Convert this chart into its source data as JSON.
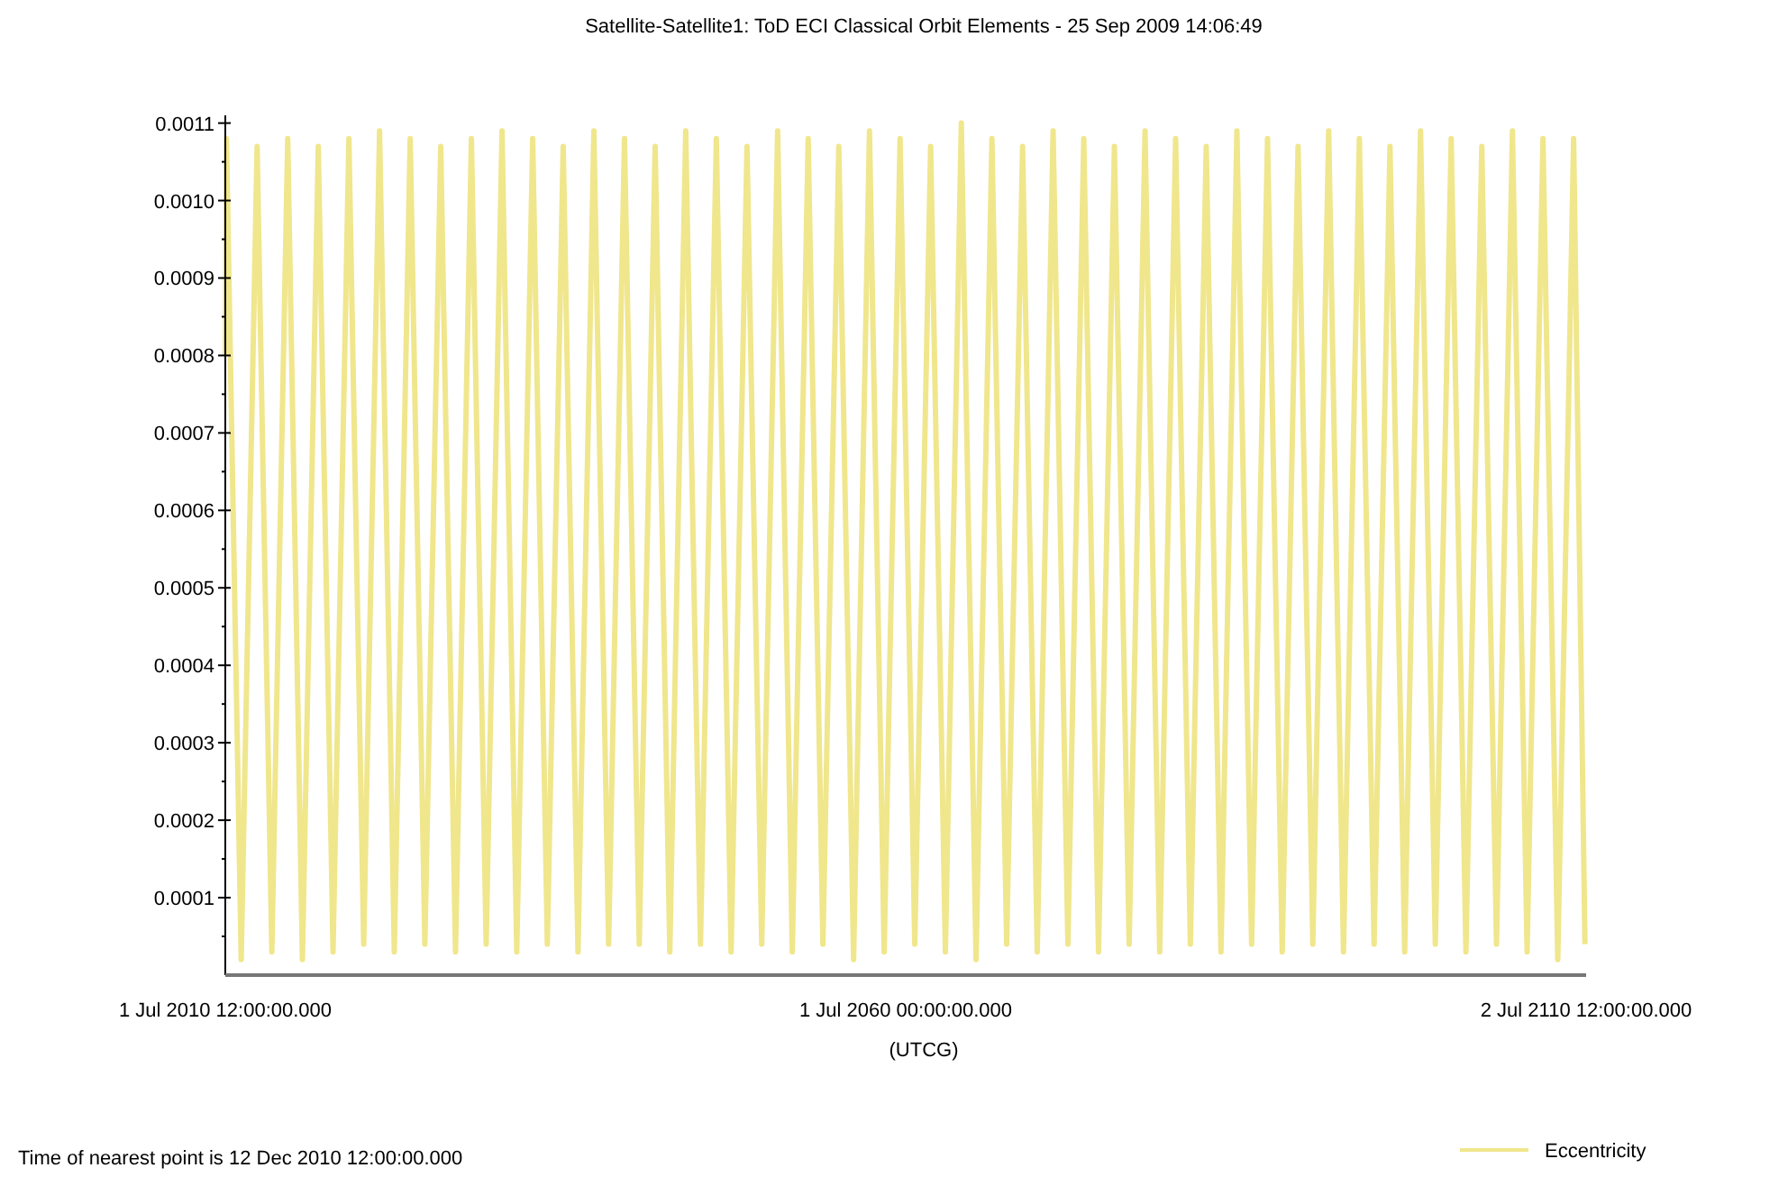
{
  "chart_data": {
    "type": "line",
    "title": "Satellite-Satellite1:  ToD ECI Classical Orbit Elements - 25 Sep 2009 14:06:49",
    "xlabel": "(UTCG)",
    "annotations": [
      "Time of nearest point is 12 Dec 2010 12:00:00.000"
    ],
    "xlim": [
      "2010-07-01T12:00",
      "2110-07-02T12:00"
    ],
    "xticks": [
      {
        "value": "2010-07-01T12:00",
        "label": "1 Jul 2010 12:00:00.000"
      },
      {
        "value": "2060-07-01T00:00",
        "label": "1 Jul 2060 00:00:00.000"
      },
      {
        "value": "2110-07-02T12:00",
        "label": "2 Jul 2110 12:00:00.000"
      }
    ],
    "ylim": [
      0,
      0.00111
    ],
    "yticks": [
      {
        "value": 5e-05,
        "label": null
      },
      0.0001,
      {
        "value": 0.00015,
        "label": null
      },
      0.0002,
      {
        "value": 0.00025,
        "label": null
      },
      0.0003,
      {
        "value": 0.00035,
        "label": null
      },
      0.0004,
      {
        "value": 0.00045,
        "label": null
      },
      0.0005,
      {
        "value": 0.00055,
        "label": null
      },
      0.0006,
      {
        "value": 0.00065,
        "label": null
      },
      0.0007,
      {
        "value": 0.00075,
        "label": null
      },
      0.0008,
      {
        "value": 0.00085,
        "label": null
      },
      0.0009,
      {
        "value": 0.00095,
        "label": null
      },
      {
        "value": 0.001,
        "label": "0.0010"
      },
      {
        "value": 0.00105,
        "label": null
      },
      0.0011
    ],
    "grid": false,
    "legend": "bottom right",
    "line_style": "solid",
    "marker": "none",
    "series": [
      {
        "name": "Eccentricity",
        "color": "#f0e68c",
        "x": [
          "2010-07-01T12:00",
          "2010-08",
          "2011-09",
          "2012-11",
          "2013-12",
          "2015-02",
          "2016-03",
          "2017-05",
          "2018-06",
          "2019-08",
          "2020-09",
          "2021-11",
          "2022-12",
          "2024-02",
          "2025-03",
          "2026-05",
          "2027-06",
          "2028-08",
          "2029-09",
          "2030-11",
          "2031-12",
          "2033-02",
          "2034-03",
          "2035-05",
          "2036-06",
          "2037-08",
          "2038-09",
          "2039-11",
          "2040-12",
          "2042-02",
          "2043-03",
          "2044-05",
          "2045-06",
          "2046-08",
          "2047-09",
          "2048-11",
          "2049-12",
          "2051-02",
          "2052-03",
          "2053-05",
          "2054-06",
          "2055-08",
          "2056-09",
          "2057-11",
          "2058-12",
          "2060-02",
          "2061-03",
          "2062-05",
          "2063-06",
          "2064-08",
          "2065-09",
          "2066-11",
          "2067-12",
          "2069-02",
          "2070-03",
          "2071-05",
          "2072-06",
          "2073-08",
          "2074-09",
          "2075-11",
          "2076-12",
          "2078-02",
          "2079-03",
          "2080-05",
          "2081-06",
          "2082-08",
          "2083-09",
          "2084-11",
          "2085-12",
          "2087-02",
          "2088-03",
          "2089-05",
          "2090-06",
          "2091-08",
          "2092-09",
          "2093-11",
          "2094-12",
          "2096-02",
          "2097-03",
          "2098-05",
          "2099-06",
          "2100-08",
          "2101-09",
          "2102-11",
          "2103-12",
          "2105-02",
          "2106-03",
          "2107-05",
          "2108-06",
          "2109-08",
          "2110-06"
        ],
        "values": [
          0.0008,
          0.00108,
          2e-05,
          0.00107,
          3e-05,
          0.00108,
          2e-05,
          0.00107,
          3e-05,
          0.00108,
          4e-05,
          0.00109,
          3e-05,
          0.00108,
          4e-05,
          0.00107,
          3e-05,
          0.00108,
          4e-05,
          0.00109,
          3e-05,
          0.00108,
          4e-05,
          0.00107,
          3e-05,
          0.00109,
          4e-05,
          0.00108,
          4e-05,
          0.00107,
          3e-05,
          0.00109,
          4e-05,
          0.00108,
          3e-05,
          0.00107,
          4e-05,
          0.00109,
          3e-05,
          0.00108,
          4e-05,
          0.00107,
          2e-05,
          0.00109,
          3e-05,
          0.00108,
          4e-05,
          0.00107,
          3e-05,
          0.0011,
          2e-05,
          0.00108,
          4e-05,
          0.00107,
          3e-05,
          0.00109,
          4e-05,
          0.00108,
          3e-05,
          0.00107,
          4e-05,
          0.00109,
          3e-05,
          0.00108,
          4e-05,
          0.00107,
          3e-05,
          0.00109,
          4e-05,
          0.00108,
          3e-05,
          0.00107,
          4e-05,
          0.00109,
          3e-05,
          0.00108,
          4e-05,
          0.00107,
          3e-05,
          0.00109,
          4e-05,
          0.00108,
          3e-05,
          0.00107,
          4e-05,
          0.00109,
          3e-05,
          0.00108,
          2e-05,
          0.00108,
          4e-05
        ]
      }
    ]
  }
}
